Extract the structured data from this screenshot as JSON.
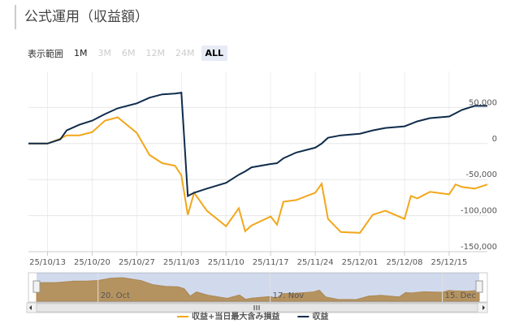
{
  "header": {
    "title": "公式運用（収益額）"
  },
  "range_selector": {
    "label": "表示範囲",
    "buttons": [
      "1M",
      "3M",
      "6M",
      "12M",
      "24M",
      "ALL"
    ],
    "disabled": [
      1,
      2,
      3,
      4
    ],
    "selected": 5
  },
  "chart_data": {
    "type": "line",
    "x": [
      "25/10/10",
      "25/10/13",
      "25/10/15",
      "25/10/16",
      "25/10/18",
      "25/10/20",
      "25/10/22",
      "25/10/24",
      "25/10/27",
      "25/10/29",
      "25/10/31",
      "25/11/02",
      "25/11/03",
      "25/11/04",
      "25/11/05",
      "25/11/07",
      "25/11/10",
      "25/11/12",
      "25/11/13",
      "25/11/14",
      "25/11/17",
      "25/11/18",
      "25/11/19",
      "25/11/21",
      "25/11/24",
      "25/11/25",
      "25/11/26",
      "25/11/28",
      "25/12/01",
      "25/12/03",
      "25/12/05",
      "25/12/08",
      "25/12/09",
      "25/12/10",
      "25/12/12",
      "25/12/15",
      "25/12/16",
      "25/12/17",
      "25/12/19",
      "25/12/21"
    ],
    "series": [
      {
        "name": "収益+当日最大含み損益",
        "color": "#f2a71b",
        "values": [
          0,
          0,
          6800,
          11400,
          11400,
          15900,
          31800,
          36400,
          14800,
          -15900,
          -27300,
          -30700,
          -44300,
          -98900,
          -68200,
          -93200,
          -114800,
          -89800,
          -121600,
          -113600,
          -101100,
          -112500,
          -80700,
          -78400,
          -68200,
          -55700,
          -104500,
          -122700,
          -123900,
          -98900,
          -93200,
          -104500,
          -72700,
          -76100,
          -67000,
          -70500,
          -56800,
          -60200,
          -62500,
          -56800
        ]
      },
      {
        "name": "収益",
        "color": "#0f2c4c",
        "values": [
          0,
          0,
          5700,
          18200,
          26100,
          31800,
          40900,
          48900,
          55700,
          63600,
          68200,
          69300,
          70500,
          -72700,
          -68200,
          -62500,
          -54500,
          -43200,
          -38600,
          -33000,
          -28400,
          -27300,
          -20500,
          -12500,
          -5700,
          0,
          8000,
          11400,
          13600,
          18200,
          21600,
          23900,
          27300,
          30700,
          35200,
          37500,
          42000,
          46600,
          52300,
          52300
        ]
      }
    ],
    "xticks": [
      "25/10/13",
      "25/10/20",
      "25/10/27",
      "25/11/03",
      "25/11/10",
      "25/11/17",
      "25/11/24",
      "25/12/01",
      "25/12/08",
      "25/12/15"
    ],
    "ylim": [
      -150000,
      100000
    ],
    "yticks": [
      {
        "value": -150000,
        "label": "-150,000"
      },
      {
        "value": -100000,
        "label": "-100,000"
      },
      {
        "value": -50000,
        "label": "-50,000"
      },
      0,
      {
        "value": 50000,
        "label": "50,000"
      }
    ],
    "grid": true,
    "legend": "bottom",
    "navigator": {
      "xticks": [
        {
          "value": "25/10/20",
          "label": "20. Oct"
        },
        {
          "value": "25/11/17",
          "label": "17. Nov"
        },
        {
          "value": "25/12/15",
          "label": "15. Dec"
        }
      ]
    }
  }
}
